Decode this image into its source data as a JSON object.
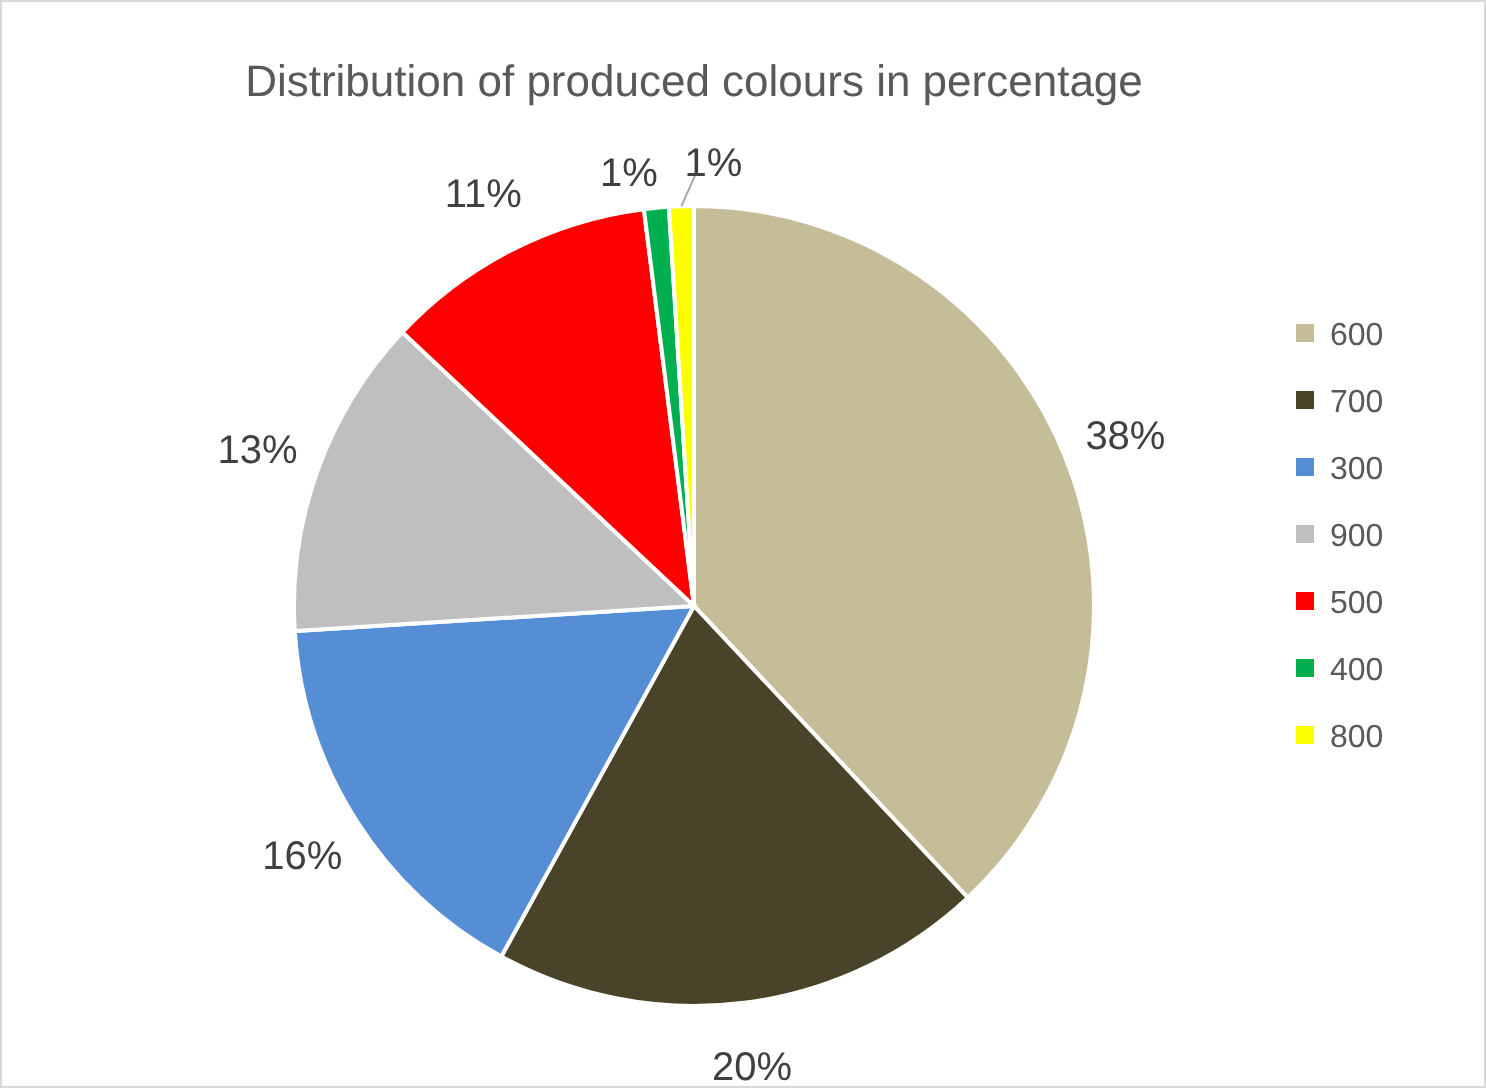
{
  "chart_data": {
    "type": "pie",
    "title": "Distribution of produced colours in percentage",
    "categories": [
      "600",
      "700",
      "300",
      "900",
      "500",
      "400",
      "800"
    ],
    "values": [
      38,
      20,
      16,
      13,
      11,
      1,
      1
    ],
    "colors": [
      "#c4bd97",
      "#494429",
      "#558ed5",
      "#bfbfbf",
      "#ff0000",
      "#00b050",
      "#ffff00"
    ],
    "value_labels": [
      "38%",
      "20%",
      "16%",
      "13%",
      "11%",
      "1%",
      "1%"
    ],
    "legend": "right"
  }
}
